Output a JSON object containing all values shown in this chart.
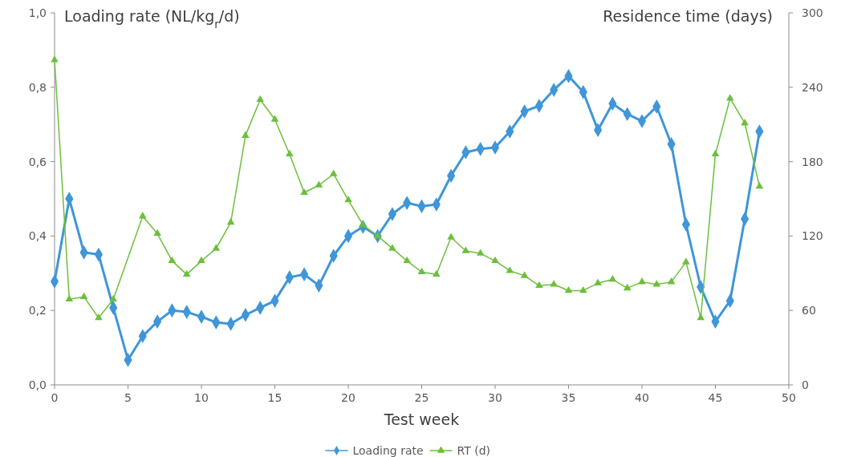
{
  "chart_data": {
    "type": "line",
    "xlabel": "Test week",
    "ylabel": "Loading rate (NL/kg$_{r}$/d)",
    "y2label": "Residence time (days)",
    "x": [
      0,
      1,
      2,
      3,
      4,
      5,
      6,
      7,
      8,
      9,
      10,
      11,
      12,
      13,
      14,
      15,
      16,
      17,
      18,
      19,
      20,
      21,
      22,
      23,
      24,
      25,
      26,
      27,
      28,
      29,
      30,
      31,
      32,
      33,
      34,
      35,
      36,
      37,
      38,
      39,
      40,
      41,
      42,
      43,
      44,
      45,
      46,
      47,
      48
    ],
    "xlim": [
      0,
      50
    ],
    "xticks": [
      0,
      5,
      10,
      15,
      20,
      25,
      30,
      35,
      40,
      45,
      50
    ],
    "ylim": [
      0,
      1
    ],
    "yticks": [
      {
        "value": 0,
        "label": "0,0"
      },
      {
        "value": 0.2,
        "label": "0,2"
      },
      {
        "value": 0.4,
        "label": "0,4"
      },
      {
        "value": 0.6,
        "label": "0,6"
      },
      {
        "value": 0.8,
        "label": "0,8"
      },
      {
        "value": 1,
        "label": "1,0"
      }
    ],
    "y2lim": [
      0,
      300
    ],
    "y2ticks": [
      0,
      60,
      120,
      180,
      240,
      300
    ],
    "grid": false,
    "legend": "bottom",
    "series": [
      {
        "name": "Loading rate",
        "color": "#3f96d8",
        "marker": "diamond",
        "values": [
          0.278,
          0.5,
          0.356,
          0.35,
          0.207,
          0.067,
          0.131,
          0.17,
          0.2,
          0.196,
          0.183,
          0.168,
          0.164,
          0.188,
          0.207,
          0.226,
          0.289,
          0.297,
          0.267,
          0.347,
          0.4,
          0.425,
          0.4,
          0.459,
          0.489,
          0.48,
          0.485,
          0.562,
          0.625,
          0.634,
          0.638,
          0.681,
          0.735,
          0.75,
          0.793,
          0.83,
          0.787,
          0.685,
          0.756,
          0.728,
          0.709,
          0.748,
          0.647,
          0.431,
          0.263,
          0.17,
          0.226,
          0.446,
          0.681
        ]
      },
      {
        "name": "RT (d)",
        "color": "#6cbf3c",
        "marker": "triangle",
        "axis": "y2",
        "values": [
          262,
          69,
          71,
          54,
          69,
          null,
          136,
          122,
          100,
          89,
          100,
          110,
          131,
          201,
          230,
          214,
          186,
          155,
          161,
          170,
          149,
          129,
          120,
          110,
          100,
          91,
          89,
          119,
          108,
          106,
          100,
          92,
          88,
          80,
          81,
          76,
          76,
          82,
          85,
          78,
          83,
          81,
          83,
          99,
          54,
          186,
          231,
          211,
          160
        ]
      }
    ]
  }
}
